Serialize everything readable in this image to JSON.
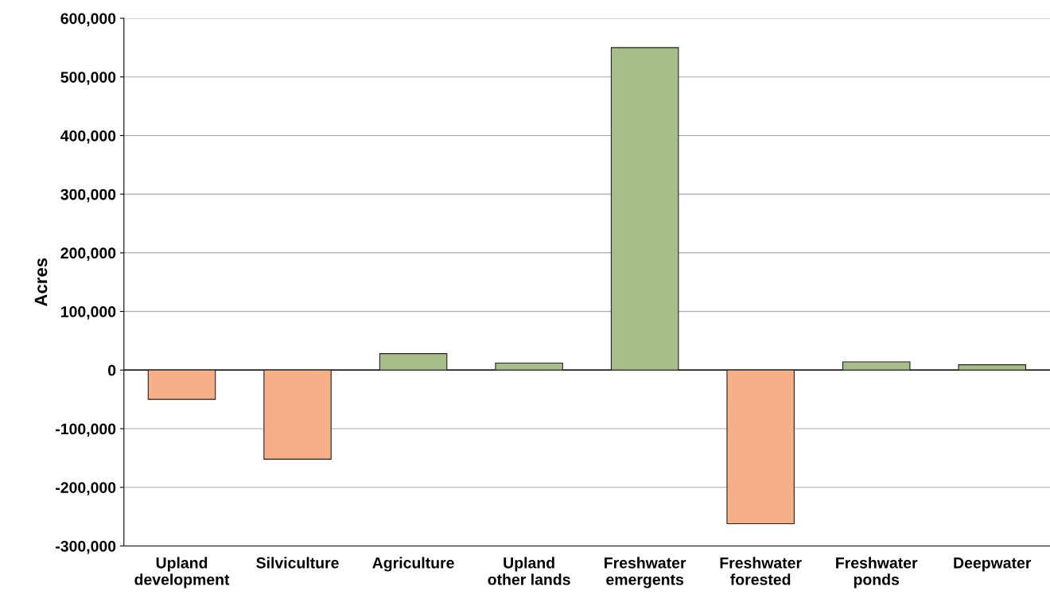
{
  "chart_data": {
    "type": "bar",
    "ylabel": "Acres",
    "categories": [
      "Upland\ndevelopment",
      "Silviculture",
      "Agriculture",
      "Upland\nother lands",
      "Freshwater\nemergents",
      "Freshwater\nforested",
      "Freshwater\nponds",
      "Deepwater"
    ],
    "values": [
      -50000,
      -152000,
      28000,
      12000,
      550000,
      -262000,
      14000,
      9000
    ],
    "colors": [
      "#f5b088",
      "#f5b088",
      "#a8be8a",
      "#a8be8a",
      "#a8be8a",
      "#f5b088",
      "#a8be8a",
      "#a8be8a"
    ],
    "ylim": [
      -300000,
      600000
    ],
    "yticks": [
      {
        "value": -300000,
        "label": "-300,000"
      },
      {
        "value": -200000,
        "label": "-200,000"
      },
      {
        "value": -100000,
        "label": "-100,000"
      },
      {
        "value": 0,
        "label": "0"
      },
      {
        "value": 100000,
        "label": "100,000"
      },
      {
        "value": 200000,
        "label": "200,000"
      },
      {
        "value": 300000,
        "label": "300,000"
      },
      {
        "value": 400000,
        "label": "400,000"
      },
      {
        "value": 500000,
        "label": "500,000"
      },
      {
        "value": 600000,
        "label": "600,000"
      }
    ],
    "grid": "y",
    "ref_lines": [
      {
        "axis": "y",
        "value": 0,
        "color": "#000000"
      }
    ]
  }
}
